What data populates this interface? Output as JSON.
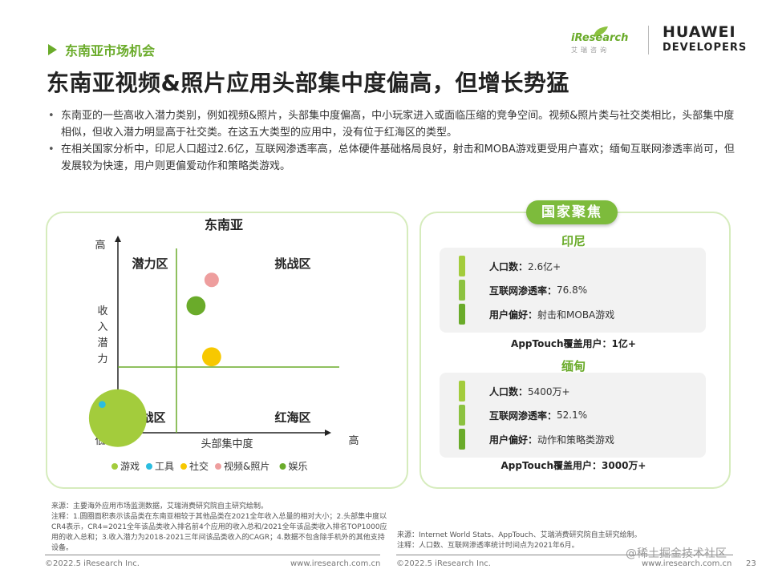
{
  "header": {
    "section_tag": "东南亚市场机会",
    "title": "东南亚视频&照片应用头部集中度偏高，但增长势猛"
  },
  "logos": {
    "iresearch_name": "iResearch",
    "iresearch_sub": "艾瑞咨询",
    "huawei_line1": "HUAWEI",
    "huawei_line2": "DEVELOPERS"
  },
  "bullets": [
    "东南亚的一些高收入潜力类别，例如视频&照片，头部集中度偏高，中小玩家进入或面临压缩的竞争空间。视频&照片类与社交类相比，头部集中度相似，但收入潜力明显高于社交类。在这五大类型的应用中，没有位于红海区的类型。",
    "在相关国家分析中，印尼人口超过2.6亿，互联网渗透率高，总体硬件基础格局良好，射击和MOBA游戏更受用户喜欢；缅甸互联网渗透率尚可，但发展较为快速，用户则更偏爱动作和策略类游戏。"
  ],
  "chart_data": {
    "type": "scatter",
    "title": "东南亚",
    "xlabel": "头部集中度",
    "ylabel": "收入潜力",
    "x_low": "",
    "x_high": "高",
    "y_low": "低",
    "y_high": "高",
    "quadrants": {
      "top_left": "潜力区",
      "top_right": "挑战区",
      "bottom_left": "鏖战区",
      "bottom_right": "红海区"
    },
    "series": [
      {
        "name": "游戏",
        "color": "#a3cc3c",
        "x": -0.75,
        "y": -0.75,
        "size": 1.0
      },
      {
        "name": "工具",
        "color": "#2bbde0",
        "x": -0.95,
        "y": -0.55,
        "size": 0.12
      },
      {
        "name": "社交",
        "color": "#f7c800",
        "x": 0.45,
        "y": 0.15,
        "size": 0.33
      },
      {
        "name": "视频&照片",
        "color": "#ee9e9e",
        "x": 0.45,
        "y": 1.28,
        "size": 0.25
      },
      {
        "name": "娱乐",
        "color": "#6aab2a",
        "x": 0.25,
        "y": 0.9,
        "size": 0.33
      }
    ]
  },
  "country_focus": {
    "tag": "国家聚焦",
    "countries": [
      {
        "name": "印尼",
        "rows": [
          {
            "label": "人口数：",
            "value": "2.6亿+",
            "color": "#a3cc3c"
          },
          {
            "label": "互联网渗透率：",
            "value": "76.8%",
            "color": "#8cc240"
          },
          {
            "label": "用户偏好：",
            "value": "射击和MOBA游戏",
            "color": "#6aab2a"
          }
        ],
        "cover_label": "AppTouch覆盖用户：",
        "cover_value": "1亿+"
      },
      {
        "name": "缅甸",
        "rows": [
          {
            "label": "人口数：",
            "value": "5400万+",
            "color": "#a3cc3c"
          },
          {
            "label": "互联网渗透率：",
            "value": "52.1%",
            "color": "#8cc240"
          },
          {
            "label": "用户偏好：",
            "value": "动作和策略类游戏",
            "color": "#6aab2a"
          }
        ],
        "cover_label": "AppTouch覆盖用户：",
        "cover_value": "3000万+"
      }
    ]
  },
  "sources": {
    "left": [
      "来源：主要海外应用市场监测数据，艾瑞消费研究院自主研究绘制。",
      "注释：1.圆圈面积表示该品类在东南亚相较于其他品类在2021全年收入总量的相对大小；2.头部集中度以CR4表示，CR4=2021全年该品类收入排名前4个应用的收入总和/2021全年该品类收入排名TOP1000应用的收入总和；3.收入潜力为2018-2021三年间该品类收入的CAGR；4.数据不包含除手机外的其他支持设备。"
    ],
    "right": [
      "来源：Internet World Stats、AppTouch、艾瑞消费研究院自主研究绘制。",
      "注释：人口数、互联网渗透率统计时间点为2021年6月。"
    ]
  },
  "footer": {
    "left_copyright": "©2022.5 iResearch Inc.",
    "left_url": "www.iresearch.com.cn",
    "right_copyright": "©2022.5 iResearch Inc.",
    "right_url": "www.iresearch.com.cn",
    "page": "23",
    "watermark": "@稀土掘金技术社区"
  }
}
